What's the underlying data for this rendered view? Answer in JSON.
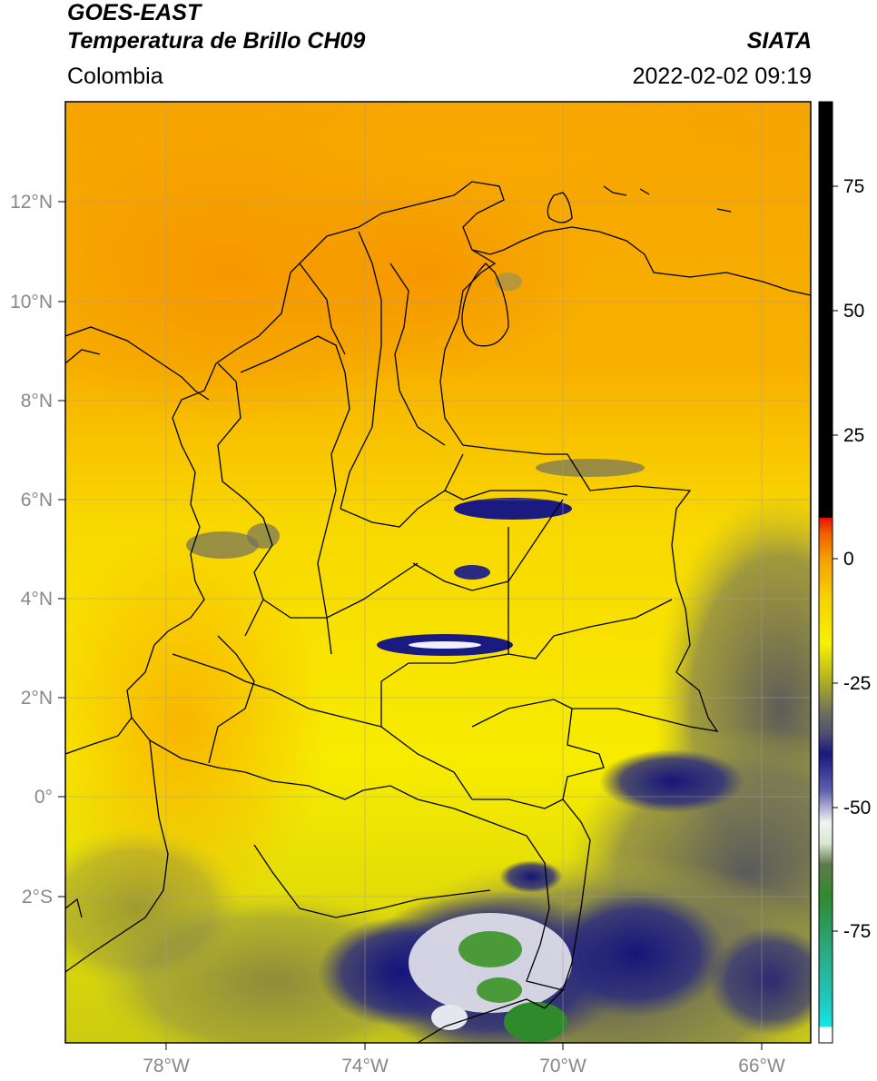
{
  "header": {
    "satellite": "GOES-EAST",
    "product": "Temperatura de Brillo CH09",
    "region": "Colombia",
    "source": "SIATA",
    "datetime": "2022-02-02 09:19"
  },
  "map": {
    "lon_ticks": [
      "78°W",
      "74°W",
      "70°W",
      "66°W"
    ],
    "lat_ticks": [
      "12°N",
      "10°N",
      "8°N",
      "6°N",
      "4°N",
      "2°N",
      "0°",
      "2°S"
    ]
  },
  "colorbar": {
    "ticks": [
      "75",
      "50",
      "25",
      "0",
      "-25",
      "-50",
      "-75"
    ],
    "colors": {
      "cyan": "#10d8d0",
      "teal": "#2aa87e",
      "green": "#2f8a2c",
      "white": "#f2f2f2",
      "navy": "#1a1a80",
      "gray": "#6e6e5a",
      "yellow": "#f5f200",
      "orange": "#f5a000",
      "red": "#e81000",
      "black": "#000000"
    }
  }
}
